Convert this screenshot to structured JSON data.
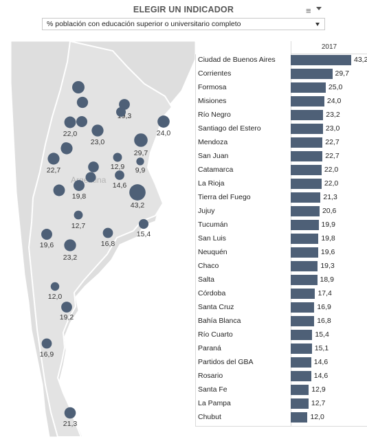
{
  "header": {
    "title": "ELEGIR UN INDICADOR",
    "menu_icon": "menu-icon",
    "dropdown_value": "% población con educación superior o universitario completo"
  },
  "map": {
    "country_label": "Argentina",
    "bubble_color": "#4e6077",
    "land_color": "#dedede"
  },
  "table": {
    "year_header": "2017",
    "bar_color": "#4e6077",
    "rows": [
      {
        "name": "Ciudad de Buenos Aires",
        "value": 43.2,
        "label": "43,2"
      },
      {
        "name": "Corrientes",
        "value": 29.7,
        "label": "29,7"
      },
      {
        "name": "Formosa",
        "value": 25.0,
        "label": "25,0"
      },
      {
        "name": "Misiones",
        "value": 24.0,
        "label": "24,0"
      },
      {
        "name": "Río Negro",
        "value": 23.2,
        "label": "23,2"
      },
      {
        "name": "Santiago del Estero",
        "value": 23.0,
        "label": "23,0"
      },
      {
        "name": "Mendoza",
        "value": 22.7,
        "label": "22,7"
      },
      {
        "name": "San Juan",
        "value": 22.7,
        "label": "22,7"
      },
      {
        "name": "Catamarca",
        "value": 22.0,
        "label": "22,0"
      },
      {
        "name": "La Rioja",
        "value": 22.0,
        "label": "22,0"
      },
      {
        "name": "Tierra del Fuego",
        "value": 21.3,
        "label": "21,3"
      },
      {
        "name": "Jujuy",
        "value": 20.6,
        "label": "20,6"
      },
      {
        "name": "Tucumán",
        "value": 19.9,
        "label": "19,9"
      },
      {
        "name": "San Luis",
        "value": 19.8,
        "label": "19,8"
      },
      {
        "name": "Neuquén",
        "value": 19.6,
        "label": "19,6"
      },
      {
        "name": "Chaco",
        "value": 19.3,
        "label": "19,3"
      },
      {
        "name": "Salta",
        "value": 18.9,
        "label": "18,9"
      },
      {
        "name": "Córdoba",
        "value": 17.4,
        "label": "17,4"
      },
      {
        "name": "Santa Cruz",
        "value": 16.9,
        "label": "16,9"
      },
      {
        "name": "Bahía Blanca",
        "value": 16.8,
        "label": "16,8"
      },
      {
        "name": "Río Cuarto",
        "value": 15.4,
        "label": "15,4"
      },
      {
        "name": "Paraná",
        "value": 15.1,
        "label": "15,1"
      },
      {
        "name": "Partidos del GBA",
        "value": 14.6,
        "label": "14,6"
      },
      {
        "name": "Rosario",
        "value": 14.6,
        "label": "14,6"
      },
      {
        "name": "Santa Fe",
        "value": 12.9,
        "label": "12,9"
      },
      {
        "name": "La Pampa",
        "value": 12.7,
        "label": "12,7"
      },
      {
        "name": "Chubut",
        "value": 12.0,
        "label": "12,0"
      }
    ]
  },
  "bubbles": [
    {
      "value": 43.2,
      "label": "43,2"
    },
    {
      "value": 29.7,
      "label": "29,7"
    },
    {
      "value": 24.0,
      "label": "24,0"
    },
    {
      "value": 23.2,
      "label": "23,2"
    },
    {
      "value": 23.0,
      "label": "23,0"
    },
    {
      "value": 22.7,
      "label": "22,7"
    },
    {
      "value": 22.0,
      "label": "22,0"
    },
    {
      "value": 21.3,
      "label": "21,3"
    },
    {
      "value": 19.8,
      "label": "19,8"
    },
    {
      "value": 19.6,
      "label": "19,6"
    },
    {
      "value": 19.3,
      "label": "19,3"
    },
    {
      "value": 19.2,
      "label": "19,2"
    },
    {
      "value": 16.9,
      "label": "16,9"
    },
    {
      "value": 16.8,
      "label": "16,8"
    },
    {
      "value": 15.4,
      "label": "15,4"
    },
    {
      "value": 14.6,
      "label": "14,6"
    },
    {
      "value": 12.9,
      "label": "12,9"
    },
    {
      "value": 12.7,
      "label": "12,7"
    },
    {
      "value": 12.0,
      "label": "12,0"
    },
    {
      "value": 9.9,
      "label": "9,9"
    },
    {
      "value": 25.0,
      "label": ""
    },
    {
      "value": 22.7,
      "label": ""
    },
    {
      "value": 22.0,
      "label": ""
    },
    {
      "value": 20.6,
      "label": ""
    },
    {
      "value": 19.9,
      "label": ""
    },
    {
      "value": 18.9,
      "label": ""
    },
    {
      "value": 17.4,
      "label": ""
    },
    {
      "value": 15.1,
      "label": ""
    },
    {
      "value": 14.6,
      "label": ""
    }
  ]
}
